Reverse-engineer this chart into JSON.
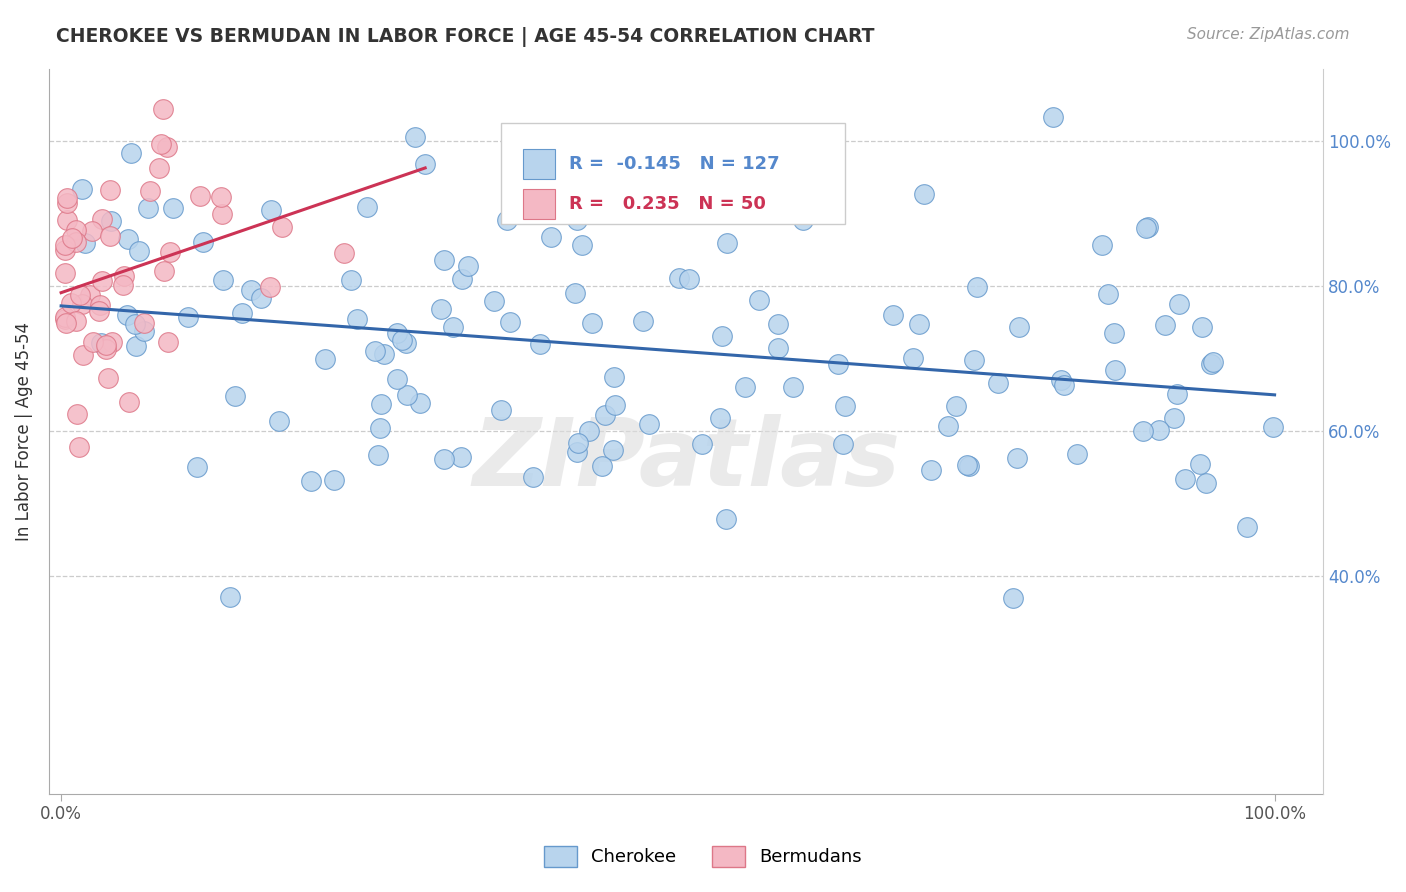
{
  "title": "CHEROKEE VS BERMUDAN IN LABOR FORCE | AGE 45-54 CORRELATION CHART",
  "source_text": "Source: ZipAtlas.com",
  "ylabel": "In Labor Force | Age 45-54",
  "watermark": "ZIPatlas",
  "cherokee_R": -0.145,
  "cherokee_N": 127,
  "bermudan_R": 0.235,
  "bermudan_N": 50,
  "cherokee_color": "#b8d4ed",
  "cherokee_edge_color": "#6699cc",
  "cherokee_line_color": "#3366aa",
  "bermudan_color": "#f4b8c4",
  "bermudan_edge_color": "#dd7788",
  "bermudan_line_color": "#cc3355",
  "background_color": "#ffffff",
  "grid_color": "#cccccc",
  "right_tick_color": "#5588cc",
  "seed_cherokee": 77,
  "seed_bermudan": 99
}
